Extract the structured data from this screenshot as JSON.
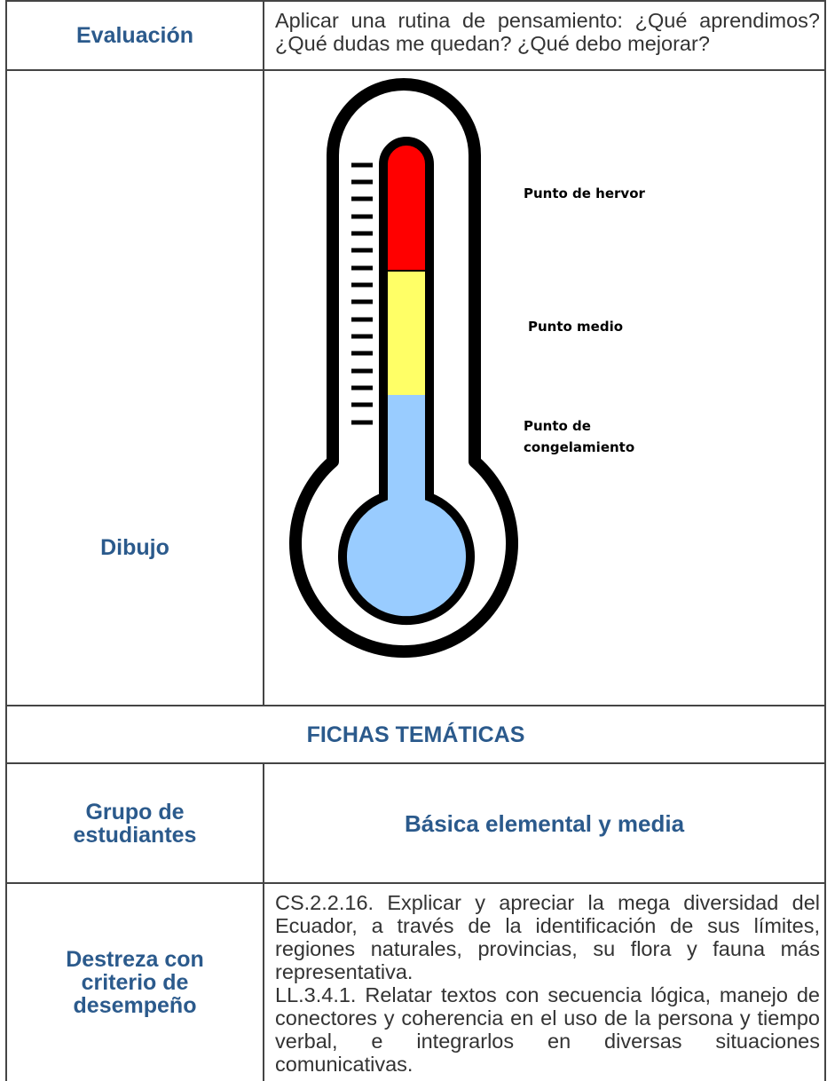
{
  "rows": [
    {
      "label": "Evaluación",
      "text": "Aplicar una rutina de pensamiento: ¿Qué aprendimos? ¿Qué dudas me quedan? ¿Qué debo mejorar?"
    },
    {
      "label": "Dibujo",
      "drawing_labels": [
        "Punto de hervor",
        "Punto medio",
        "Punto de congelamiento"
      ]
    },
    {
      "heading": "FICHAS TEMÁTICAS"
    },
    {
      "label": "Grupo de estudiantes",
      "text": "Básica elemental y media"
    },
    {
      "label": "Destreza con criterio de desempeño",
      "paragraphs": [
        "CS.2.2.16. Explicar y apreciar la mega diversidad del Ecuador, a través de la identificación de sus límites, regiones naturales, provincias, su flora y fauna más representativa.",
        "LL.3.4.1. Relatar textos con secuencia lógica, manejo de conectores y coherencia en el uso de la persona y tiempo verbal, e integrarlos en diversas situaciones comunicativas."
      ]
    }
  ]
}
